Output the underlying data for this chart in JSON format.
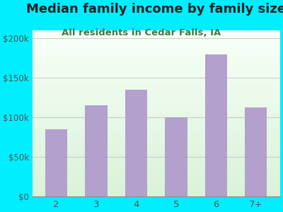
{
  "title": "Median family income by family size",
  "subtitle": "All residents in Cedar Falls, IA",
  "categories": [
    "2",
    "3",
    "4",
    "5",
    "6",
    "7+"
  ],
  "values": [
    85000,
    115000,
    135000,
    100000,
    180000,
    113000
  ],
  "bar_color": "#b3a0cc",
  "title_fontsize": 13,
  "subtitle_fontsize": 9.5,
  "background_outer": "#00eeff",
  "ylim": [
    0,
    210000
  ],
  "yticks": [
    0,
    50000,
    100000,
    150000,
    200000
  ],
  "ytick_labels": [
    "$0",
    "$50k",
    "$100k",
    "$150k",
    "$200k"
  ],
  "tick_color": "#555555",
  "grid_color": "#cccccc",
  "title_color": "#222222",
  "subtitle_color": "#447744"
}
